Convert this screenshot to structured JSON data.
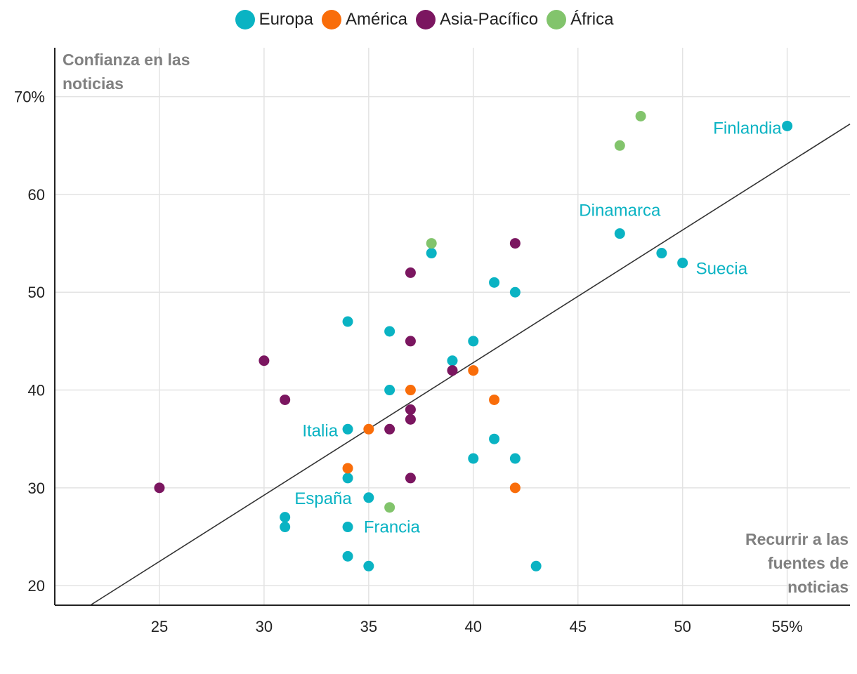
{
  "legend": [
    {
      "name": "Europa",
      "color": "#0ab3c3"
    },
    {
      "name": "América",
      "color": "#f96d0a"
    },
    {
      "name": "Asia-Pacífico",
      "color": "#7b1660"
    },
    {
      "name": "África",
      "color": "#82c46c"
    }
  ],
  "chart_data": {
    "type": "scatter",
    "xlabel": "Recurrir a las fuentes de noticias",
    "ylabel": "Confianza en las noticias",
    "ylabel_lines": [
      "Confianza en las",
      "noticias"
    ],
    "xlabel_lines": [
      "Recurrir a las",
      "fuentes de",
      "noticias"
    ],
    "xlim": [
      20,
      58
    ],
    "ylim": [
      18,
      75
    ],
    "x_ticks": [
      25,
      30,
      35,
      40,
      45,
      50,
      55
    ],
    "x_tick_labels": [
      "25",
      "30",
      "35",
      "40",
      "45",
      "50",
      "55%"
    ],
    "y_ticks": [
      20,
      30,
      40,
      50,
      60,
      70
    ],
    "y_tick_labels": [
      "20",
      "30",
      "40",
      "50",
      "60",
      "70%"
    ],
    "grid": true,
    "trendline": {
      "x1": 21.7,
      "y1": 18,
      "x2": 58,
      "y2": 67.2
    },
    "series": [
      {
        "name": "Europa",
        "color": "#0ab3c3",
        "points": [
          [
            55,
            67
          ],
          [
            47,
            56
          ],
          [
            49,
            54
          ],
          [
            50,
            53
          ],
          [
            38,
            54
          ],
          [
            41,
            51
          ],
          [
            42,
            50
          ],
          [
            34,
            47
          ],
          [
            36,
            46
          ],
          [
            40,
            45
          ],
          [
            39,
            43
          ],
          [
            36,
            40
          ],
          [
            34,
            36
          ],
          [
            41,
            35
          ],
          [
            40,
            33
          ],
          [
            42,
            33
          ],
          [
            34,
            31
          ],
          [
            35,
            29
          ],
          [
            31,
            27
          ],
          [
            31,
            26
          ],
          [
            34,
            26
          ],
          [
            34,
            23
          ],
          [
            35,
            22
          ],
          [
            43,
            22
          ]
        ]
      },
      {
        "name": "América",
        "color": "#f96d0a",
        "points": [
          [
            40,
            42
          ],
          [
            37,
            40
          ],
          [
            41,
            39
          ],
          [
            35,
            36
          ],
          [
            34,
            32
          ],
          [
            42,
            30
          ]
        ]
      },
      {
        "name": "Asia-Pacífico",
        "color": "#7b1660",
        "points": [
          [
            42,
            55
          ],
          [
            37,
            52
          ],
          [
            37,
            45
          ],
          [
            30,
            43
          ],
          [
            39,
            42
          ],
          [
            31,
            39
          ],
          [
            37,
            38
          ],
          [
            37,
            37
          ],
          [
            36,
            36
          ],
          [
            37,
            31
          ],
          [
            25,
            30
          ]
        ]
      },
      {
        "name": "África",
        "color": "#82c46c",
        "points": [
          [
            48,
            68
          ],
          [
            47,
            65
          ],
          [
            38,
            55
          ],
          [
            36,
            28
          ]
        ]
      }
    ],
    "point_labels": [
      {
        "text": "Finlandia",
        "x": 55,
        "y": 67,
        "anchor": "end",
        "dx": -8,
        "dy": 11
      },
      {
        "text": "Dinamarca",
        "x": 47,
        "y": 56,
        "anchor": "middle",
        "dx": 0,
        "dy": -25
      },
      {
        "text": "Suecia",
        "x": 50,
        "y": 53,
        "anchor": "start",
        "dx": 19,
        "dy": 16
      },
      {
        "text": "Italia",
        "x": 34,
        "y": 36,
        "anchor": "end",
        "dx": -14,
        "dy": 10
      },
      {
        "text": "España",
        "x": 34,
        "y": 29,
        "anchor": "middle",
        "dx": -35,
        "dy": 9
      },
      {
        "text": "Francia",
        "x": 35,
        "y": 26,
        "anchor": "start",
        "dx": -7,
        "dy": 8
      }
    ],
    "point_label_color": "#0ab3c3"
  }
}
